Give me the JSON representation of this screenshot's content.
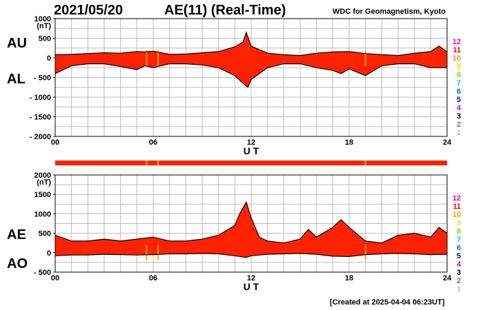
{
  "header": {
    "date": "2021/05/20",
    "title": "AE(11) (Real-Time)",
    "source": "WDC for Geomagnetism, Kyoto"
  },
  "footer": {
    "created": "[Created at 2025-04-04 06:23UT]"
  },
  "legend": {
    "labels": [
      "12",
      "11",
      "10",
      "9",
      "8",
      "7",
      "6",
      "5",
      "4",
      "3",
      "2",
      "1"
    ],
    "colors": [
      "#ff00aa",
      "#ff0000",
      "#ff9900",
      "#ffdd00",
      "#55ee00",
      "#00cccc",
      "#0066ff",
      "#0000cc",
      "#cc00cc",
      "#000000",
      "#777777",
      "#bbbbbb"
    ]
  },
  "chart_data": [
    {
      "type": "area",
      "series": [
        {
          "name": "AU",
          "label": "AU"
        },
        {
          "name": "AL",
          "label": "AL"
        }
      ],
      "unit": "(nT)",
      "xlabel": "U T",
      "xlim": [
        0,
        24
      ],
      "xticks": [
        "00",
        "06",
        "12",
        "18",
        "24"
      ],
      "ylim": [
        -2000,
        1000
      ],
      "yticks": [
        "1000",
        "500",
        "0",
        "- 500",
        "- 1000",
        "- 1500",
        "- 2000"
      ],
      "ytick_values": [
        1000,
        500,
        0,
        -500,
        -1000,
        -1500,
        -2000
      ],
      "grid": true,
      "fill_color": "#ff2200",
      "upper": [
        [
          0,
          80
        ],
        [
          1,
          90
        ],
        [
          2,
          110
        ],
        [
          3,
          130
        ],
        [
          4,
          120
        ],
        [
          5,
          160
        ],
        [
          5.5,
          150
        ],
        [
          6,
          170
        ],
        [
          7,
          90
        ],
        [
          8,
          100
        ],
        [
          9,
          130
        ],
        [
          10,
          160
        ],
        [
          11,
          280
        ],
        [
          11.5,
          400
        ],
        [
          11.7,
          650
        ],
        [
          12,
          300
        ],
        [
          13,
          120
        ],
        [
          14,
          80
        ],
        [
          15,
          60
        ],
        [
          16,
          120
        ],
        [
          17,
          150
        ],
        [
          18,
          160
        ],
        [
          19,
          110
        ],
        [
          20,
          80
        ],
        [
          21,
          60
        ],
        [
          22,
          120
        ],
        [
          23,
          160
        ],
        [
          23.5,
          300
        ],
        [
          24,
          150
        ]
      ],
      "lower": [
        [
          0,
          -400
        ],
        [
          1,
          -200
        ],
        [
          2,
          -150
        ],
        [
          3,
          -150
        ],
        [
          4,
          -220
        ],
        [
          5,
          -300
        ],
        [
          5.5,
          -200
        ],
        [
          6,
          -250
        ],
        [
          7,
          -150
        ],
        [
          8,
          -150
        ],
        [
          9,
          -180
        ],
        [
          10,
          -250
        ],
        [
          11,
          -450
        ],
        [
          11.5,
          -650
        ],
        [
          11.8,
          -750
        ],
        [
          12,
          -550
        ],
        [
          13,
          -250
        ],
        [
          14,
          -150
        ],
        [
          15,
          -150
        ],
        [
          16,
          -250
        ],
        [
          17,
          -320
        ],
        [
          17.5,
          -400
        ],
        [
          18,
          -280
        ],
        [
          19,
          -450
        ],
        [
          20,
          -200
        ],
        [
          21,
          -150
        ],
        [
          22,
          -150
        ],
        [
          23,
          -250
        ],
        [
          24,
          -250
        ]
      ],
      "highlights": [
        {
          "x": 5.6,
          "color": "#ffaa00"
        },
        {
          "x": 6.3,
          "color": "#ffaa00"
        },
        {
          "x": 19,
          "color": "#ffaa00"
        }
      ]
    },
    {
      "type": "area",
      "series": [
        {
          "name": "AE",
          "label": "AE"
        },
        {
          "name": "AO",
          "label": "AO"
        }
      ],
      "unit": "(nT)",
      "xlabel": "U T",
      "xlim": [
        0,
        24
      ],
      "xticks": [
        "00",
        "06",
        "12",
        "18",
        "24"
      ],
      "ylim": [
        -500,
        2000
      ],
      "yticks": [
        "2000",
        "1500",
        "1000",
        "500",
        "0",
        "- 500"
      ],
      "ytick_values": [
        2000,
        1500,
        1000,
        500,
        0,
        -500
      ],
      "grid": true,
      "fill_color": "#ff2200",
      "upper": [
        [
          0,
          450
        ],
        [
          1,
          300
        ],
        [
          2,
          300
        ],
        [
          3,
          350
        ],
        [
          4,
          300
        ],
        [
          5,
          350
        ],
        [
          6,
          400
        ],
        [
          7,
          300
        ],
        [
          8,
          300
        ],
        [
          9,
          350
        ],
        [
          10,
          450
        ],
        [
          11,
          700
        ],
        [
          11.3,
          1000
        ],
        [
          11.7,
          1300
        ],
        [
          12,
          900
        ],
        [
          12.5,
          400
        ],
        [
          13,
          300
        ],
        [
          14,
          250
        ],
        [
          15,
          350
        ],
        [
          15.5,
          600
        ],
        [
          16,
          400
        ],
        [
          17,
          650
        ],
        [
          17.5,
          850
        ],
        [
          18,
          650
        ],
        [
          19,
          300
        ],
        [
          20,
          250
        ],
        [
          21,
          450
        ],
        [
          22,
          500
        ],
        [
          23,
          400
        ],
        [
          23.5,
          650
        ],
        [
          24,
          500
        ]
      ],
      "lower": [
        [
          0,
          -80
        ],
        [
          1,
          -60
        ],
        [
          2,
          -60
        ],
        [
          3,
          -40
        ],
        [
          4,
          -50
        ],
        [
          5,
          -60
        ],
        [
          6,
          -50
        ],
        [
          7,
          -30
        ],
        [
          8,
          -30
        ],
        [
          9,
          -20
        ],
        [
          10,
          -30
        ],
        [
          11,
          -80
        ],
        [
          11.7,
          -120
        ],
        [
          12,
          -80
        ],
        [
          13,
          -40
        ],
        [
          14,
          -30
        ],
        [
          15,
          -20
        ],
        [
          16,
          -40
        ],
        [
          17,
          -90
        ],
        [
          18,
          -100
        ],
        [
          19,
          -50
        ],
        [
          20,
          -30
        ],
        [
          21,
          -20
        ],
        [
          22,
          -30
        ],
        [
          23,
          -50
        ],
        [
          24,
          -40
        ]
      ],
      "highlights": [
        {
          "x": 5.6,
          "color": "#ffaa00"
        },
        {
          "x": 6.3,
          "color": "#ffaa00"
        },
        {
          "x": 19,
          "color": "#ffaa00"
        }
      ]
    }
  ]
}
